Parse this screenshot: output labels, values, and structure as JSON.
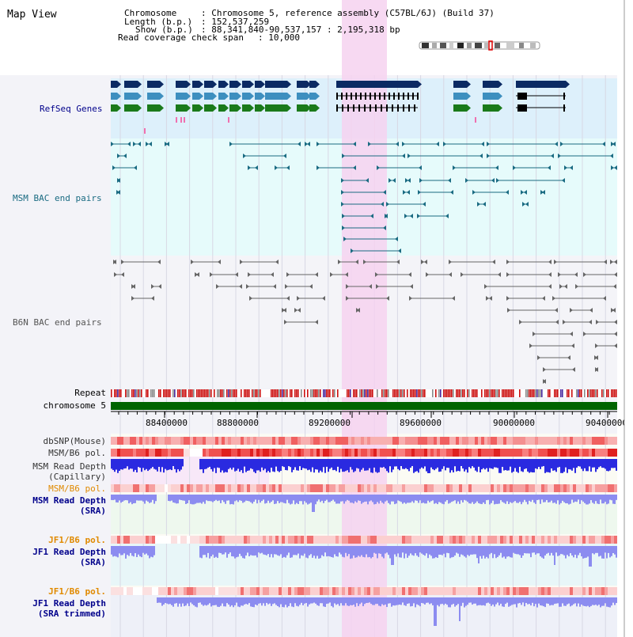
{
  "view_title": "Map View",
  "info": {
    "chromosome_label": "Chromosome",
    "chromosome_value": ": Chromosome 5, reference assembly (C57BL/6J) (Build 37)",
    "length_label": "Length (b.p.)",
    "length_value": ": 152,537,259",
    "show_label": "Show (b.p.)",
    "show_value": ": 88,341,840-90,537,157 : 2,195,318 bp",
    "coverage_label": "Read coverage check span",
    "coverage_value": ": 10,000"
  },
  "tracks": {
    "refseq": "RefSeq Genes",
    "msm_bac": "MSM BAC end pairs",
    "b6n_bac": "B6N BAC end pairs",
    "repeat": "Repeat",
    "chromosome": "chromosome 5",
    "dbsnp": "dbSNP(Mouse)",
    "msm_b6_pol_1": "MSM/B6 pol.",
    "msm_depth_cap_1": "MSM Read Depth",
    "msm_depth_cap_2": "(Capillary)",
    "msm_b6_pol_2": "MSM/B6 pol.",
    "msm_depth_sra_1": "MSM Read Depth",
    "msm_depth_sra_2": "(SRA)",
    "jf1_b6_pol_1": "JF1/B6 pol.",
    "jf1_depth_sra_1": "JF1 Read Depth",
    "jf1_depth_sra_2": "(SRA)",
    "jf1_b6_pol_2": "JF1/B6 pol.",
    "jf1_depth_trim_1": "JF1 Read Depth",
    "jf1_depth_trim_2": "(SRA trimmed)"
  },
  "ruler": {
    "ticks": [
      "88400000",
      "88800000",
      "89200000",
      "89600000",
      "90000000",
      "90400000"
    ]
  },
  "colors": {
    "highlight": "#f6d2f0",
    "refseq_bg": "#ddf0fb",
    "refseq_dark": "#0b2a63",
    "refseq_mid": "#3d8fbf",
    "refseq_green": "#1a7a1a",
    "msm_bac": "#1a6b82",
    "b6n_bac": "#666666",
    "chromosome": "#006400",
    "pol": "#f08080",
    "depth_dark": "#2a2ae0",
    "depth_light": "#8c8cf0",
    "label_blue": "#00008b",
    "label_orange": "#e08a00",
    "label_teal": "#1a6b82"
  }
}
